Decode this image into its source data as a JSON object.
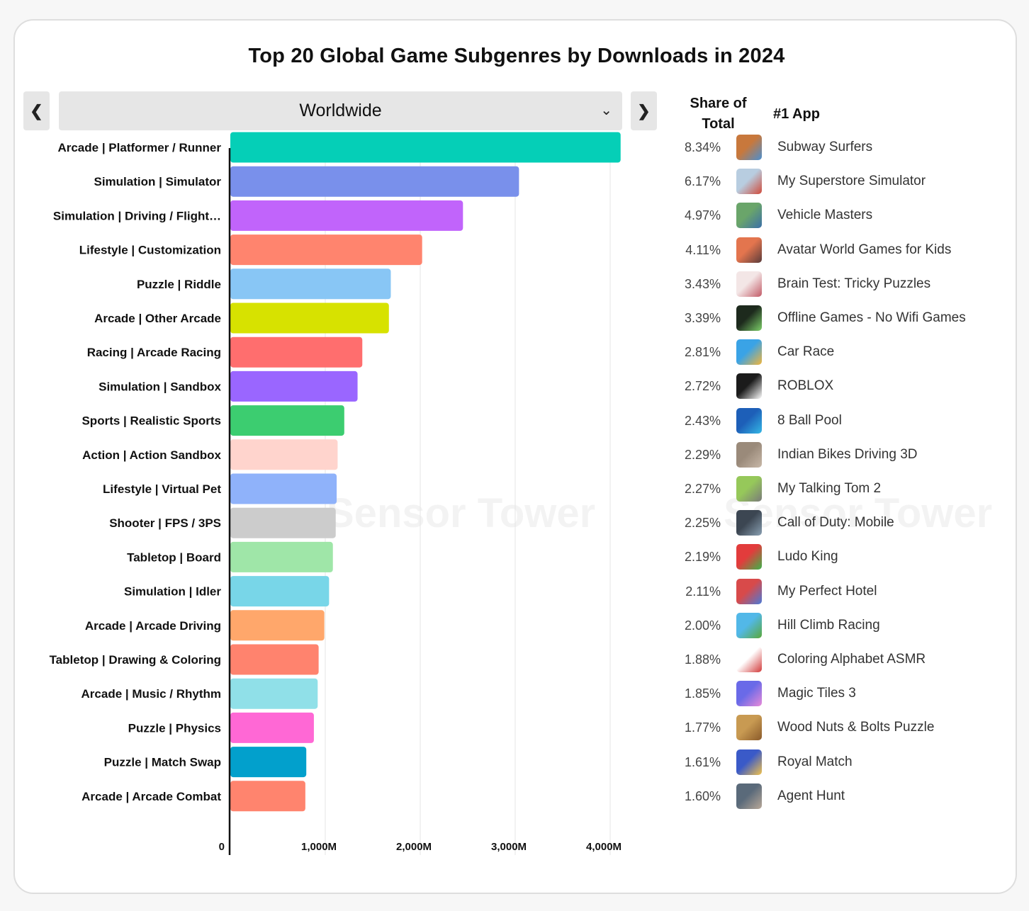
{
  "title": "Top 20 Global Game Subgenres by Downloads in 2024",
  "region": {
    "selected": "Worldwide"
  },
  "columns": {
    "share_line1": "Share of",
    "share_line2": "Total",
    "app": "#1 App"
  },
  "watermark": "Sensor Tower",
  "colors": {
    "accent_primary": "#05cfb7"
  },
  "chart_data": {
    "type": "bar",
    "orientation": "horizontal",
    "xlim": [
      0,
      4000
    ],
    "x_unit": "M",
    "x_ticks": [
      "0",
      "1,000M",
      "2,000M",
      "3,000M",
      "4,000M"
    ],
    "grid": true,
    "categories": [
      "Arcade | Platformer / Runner",
      "Simulation | Simulator",
      "Simulation | Driving / Flight…",
      "Lifestyle | Customization",
      "Puzzle | Riddle",
      "Arcade | Other Arcade",
      "Racing | Arcade Racing",
      "Simulation | Sandbox",
      "Sports | Realistic Sports",
      "Action | Action Sandbox",
      "Lifestyle | Virtual Pet",
      "Shooter | FPS / 3PS",
      "Tabletop | Board",
      "Simulation | Idler",
      "Arcade | Arcade Driving",
      "Tabletop | Drawing & Coloring",
      "Arcade | Music / Rhythm",
      "Puzzle | Physics",
      "Puzzle | Match Swap",
      "Arcade | Arcade Combat"
    ],
    "values": [
      4110,
      3040,
      2450,
      2020,
      1690,
      1670,
      1390,
      1340,
      1200,
      1130,
      1120,
      1110,
      1080,
      1040,
      990,
      930,
      920,
      880,
      800,
      790
    ],
    "colors": [
      "#05cfb7",
      "#7990eb",
      "#c164fb",
      "#ff846e",
      "#88c6f5",
      "#d7e200",
      "#ff6e6e",
      "#9a66ff",
      "#3ccd70",
      "#ffd4cd",
      "#8fb2fa",
      "#cccccc",
      "#9fe6a8",
      "#78d6e8",
      "#ffa76b",
      "#ff836e",
      "#90e0e8",
      "#ff68d5",
      "#02a0cc",
      "#ff846e"
    ]
  },
  "rows": [
    {
      "share": "8.34%",
      "app": "Subway Surfers",
      "icon": "subway-surfers-icon",
      "icon_colors": [
        "#c8783c",
        "#4a8fd1"
      ]
    },
    {
      "share": "6.17%",
      "app": "My Superstore Simulator",
      "icon": "superstore-icon",
      "icon_colors": [
        "#b8cde0",
        "#d04a3a"
      ]
    },
    {
      "share": "4.97%",
      "app": "Vehicle Masters",
      "icon": "vehicle-masters-icon",
      "icon_colors": [
        "#6aa56a",
        "#3b6fa8"
      ]
    },
    {
      "share": "4.11%",
      "app": "Avatar World Games for Kids",
      "icon": "avatar-world-icon",
      "icon_colors": [
        "#e3754e",
        "#5a3b3b"
      ]
    },
    {
      "share": "3.43%",
      "app": "Brain Test: Tricky Puzzles",
      "icon": "brain-test-icon",
      "icon_colors": [
        "#f3e6e6",
        "#c25a66"
      ]
    },
    {
      "share": "3.39%",
      "app": "Offline Games - No Wifi Games",
      "icon": "offline-games-icon",
      "icon_colors": [
        "#1d2a1d",
        "#7dd06a"
      ]
    },
    {
      "share": "2.81%",
      "app": "Car Race",
      "icon": "car-race-icon",
      "icon_colors": [
        "#3aa3e6",
        "#f2b53a"
      ]
    },
    {
      "share": "2.72%",
      "app": "ROBLOX",
      "icon": "roblox-icon",
      "icon_colors": [
        "#1b1b1b",
        "#ffffff"
      ]
    },
    {
      "share": "2.43%",
      "app": "8 Ball Pool",
      "icon": "8-ball-pool-icon",
      "icon_colors": [
        "#1d5fb8",
        "#35b8e6"
      ]
    },
    {
      "share": "2.29%",
      "app": "Indian Bikes Driving 3D",
      "icon": "indian-bikes-icon",
      "icon_colors": [
        "#9a8a7a",
        "#c8b8a8"
      ]
    },
    {
      "share": "2.27%",
      "app": "My Talking Tom 2",
      "icon": "talking-tom-icon",
      "icon_colors": [
        "#96c85a",
        "#7a7a7a"
      ]
    },
    {
      "share": "2.25%",
      "app": "Call of Duty: Mobile",
      "icon": "call-of-duty-icon",
      "icon_colors": [
        "#3c4652",
        "#8aa0b2"
      ]
    },
    {
      "share": "2.19%",
      "app": "Ludo King",
      "icon": "ludo-king-icon",
      "icon_colors": [
        "#e23c3c",
        "#3cb44a"
      ]
    },
    {
      "share": "2.11%",
      "app": "My Perfect Hotel",
      "icon": "perfect-hotel-icon",
      "icon_colors": [
        "#d84a4a",
        "#4a7ad8"
      ]
    },
    {
      "share": "2.00%",
      "app": "Hill Climb Racing",
      "icon": "hill-climb-icon",
      "icon_colors": [
        "#52b8e8",
        "#5aa83a"
      ]
    },
    {
      "share": "1.88%",
      "app": "Coloring Alphabet ASMR",
      "icon": "coloring-alphabet-icon",
      "icon_colors": [
        "#ffffff",
        "#d23a3a"
      ]
    },
    {
      "share": "1.85%",
      "app": "Magic Tiles 3",
      "icon": "magic-tiles-icon",
      "icon_colors": [
        "#6a6ae8",
        "#e88ad8"
      ]
    },
    {
      "share": "1.77%",
      "app": "Wood Nuts & Bolts Puzzle",
      "icon": "wood-nuts-icon",
      "icon_colors": [
        "#c89a52",
        "#8a5a2a"
      ]
    },
    {
      "share": "1.61%",
      "app": "Royal Match",
      "icon": "royal-match-icon",
      "icon_colors": [
        "#3a5ac8",
        "#f2c24a"
      ]
    },
    {
      "share": "1.60%",
      "app": "Agent Hunt",
      "icon": "agent-hunt-icon",
      "icon_colors": [
        "#5a6a7a",
        "#b8a898"
      ]
    }
  ]
}
